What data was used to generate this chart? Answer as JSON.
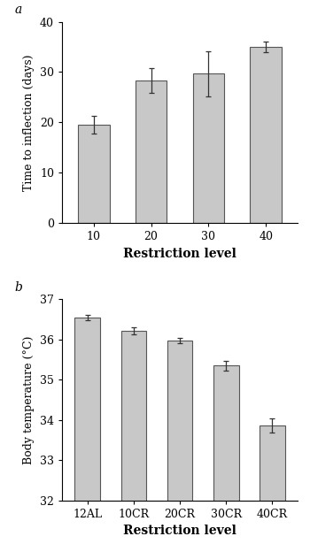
{
  "panel_a": {
    "categories": [
      "10",
      "20",
      "30",
      "40"
    ],
    "values": [
      19.5,
      28.3,
      29.7,
      35.0
    ],
    "errors": [
      1.8,
      2.5,
      4.5,
      1.0
    ],
    "ylabel": "Time to inflection (days)",
    "xlabel": "Restriction level",
    "ylim": [
      0,
      40
    ],
    "yticks": [
      0,
      10,
      20,
      30,
      40
    ],
    "label": "a"
  },
  "panel_b": {
    "categories": [
      "12AL",
      "10CR",
      "20CR",
      "30CR",
      "40CR"
    ],
    "values": [
      36.55,
      36.22,
      35.98,
      35.35,
      33.87
    ],
    "errors": [
      0.07,
      0.08,
      0.06,
      0.12,
      0.18
    ],
    "ylabel": "Body temperature (°C)",
    "xlabel": "Restriction level",
    "ylim": [
      32,
      37
    ],
    "yticks": [
      32,
      33,
      34,
      35,
      36,
      37
    ],
    "label": "b"
  },
  "bar_color": "#c8c8c8",
  "bar_edgecolor": "#555555",
  "error_color": "#333333",
  "bar_linewidth": 0.8,
  "capsize": 2.5,
  "elinewidth": 0.9,
  "tick_fontsize": 9,
  "label_fontsize": 9,
  "xlabel_fontsize": 10
}
